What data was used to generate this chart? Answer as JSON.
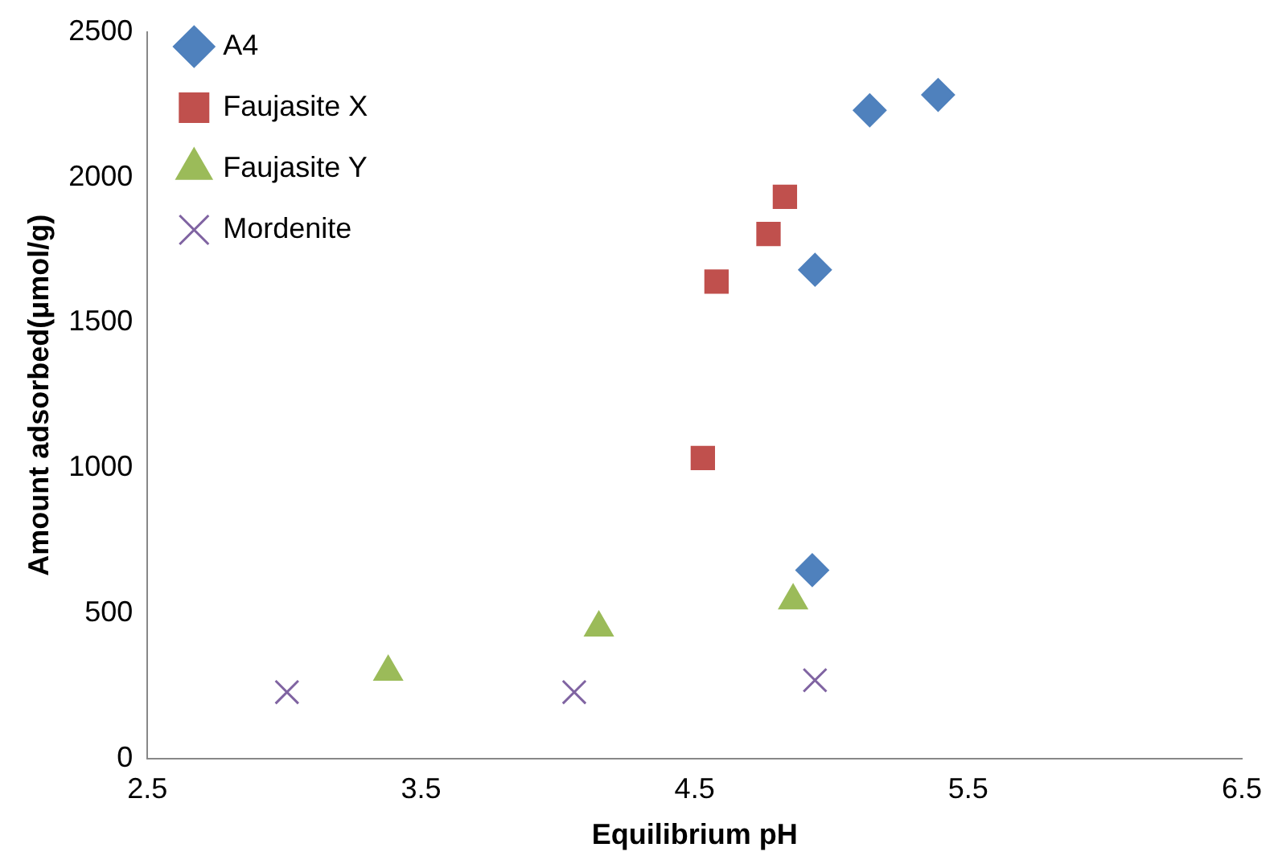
{
  "chart_data": {
    "type": "scatter",
    "xlabel": "Equilibrium pH",
    "ylabel": "Amount adsorbed(μmol/g)",
    "xlim": [
      2.5,
      6.5
    ],
    "xticks": [
      2.5,
      3.5,
      4.5,
      5.5,
      6.5
    ],
    "ylim": [
      0,
      2500
    ],
    "yticks": [
      0,
      500,
      1000,
      1500,
      2000,
      2500
    ],
    "grid": false,
    "legend": "top left",
    "series": [
      {
        "name": "A4",
        "color": "#4f81bd",
        "marker": "diamond",
        "x": [
          4.93,
          4.94,
          5.14,
          5.39
        ],
        "values": [
          648,
          1682,
          2231,
          2284
        ]
      },
      {
        "name": "Faujasite X",
        "color": "#c0504d",
        "marker": "square",
        "x": [
          4.53,
          4.58,
          4.77,
          4.83
        ],
        "values": [
          1034,
          1641,
          1805,
          1933
        ]
      },
      {
        "name": "Faujasite Y",
        "color": "#9bbb59",
        "marker": "triangle",
        "x": [
          3.38,
          4.15,
          4.86
        ],
        "values": [
          298,
          450,
          543
        ]
      },
      {
        "name": "Mordenite",
        "color": "#8064a2",
        "marker": "cross",
        "x": [
          3.01,
          4.06,
          4.94
        ],
        "values": [
          228,
          228,
          269
        ]
      }
    ]
  }
}
